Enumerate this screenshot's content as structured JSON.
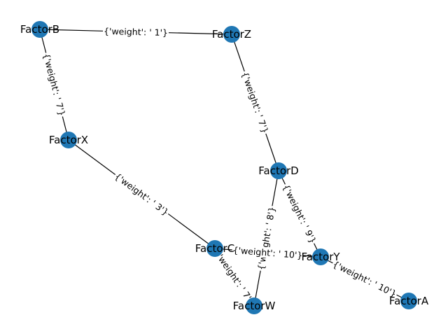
{
  "graph": {
    "nodes": [
      {
        "id": "FactorB",
        "label": "FactorB"
      },
      {
        "id": "FactorZ",
        "label": "FactorZ"
      },
      {
        "id": "FactorX",
        "label": "FactorX"
      },
      {
        "id": "FactorD",
        "label": "FactorD"
      },
      {
        "id": "FactorC",
        "label": "FactorC"
      },
      {
        "id": "FactorY",
        "label": "FactorY"
      },
      {
        "id": "FactorW",
        "label": "FactorW"
      },
      {
        "id": "FactorA",
        "label": "FactorA"
      }
    ],
    "edges": [
      {
        "source": "FactorB",
        "target": "FactorZ",
        "label": "{'weight': ' 1'}"
      },
      {
        "source": "FactorB",
        "target": "FactorX",
        "label": "{'weight': ' 7'}"
      },
      {
        "source": "FactorZ",
        "target": "FactorD",
        "label": "{'weight': ' 7'}"
      },
      {
        "source": "FactorX",
        "target": "FactorC",
        "label": "{'weight': ' 3'}"
      },
      {
        "source": "FactorD",
        "target": "FactorY",
        "label": "{'weight': ' 9'}"
      },
      {
        "source": "FactorD",
        "target": "FactorW",
        "label": "{'weight': ' 8'}"
      },
      {
        "source": "FactorC",
        "target": "FactorY",
        "label": "{'weight': ' 10'}"
      },
      {
        "source": "FactorC",
        "target": "FactorW",
        "label": "{'weight': ' 7'}"
      },
      {
        "source": "FactorY",
        "target": "FactorA",
        "label": "{'weight': ' 10'}"
      }
    ],
    "colors": {
      "node": "#1f77b4",
      "edge": "#000000",
      "background": "#ffffff"
    }
  }
}
